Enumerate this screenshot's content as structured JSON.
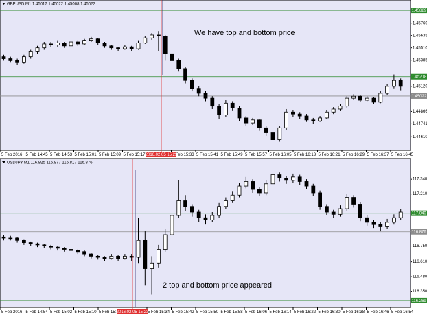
{
  "chart_data": [
    {
      "type": "candlestick",
      "header": "GBPUSD,M1  1.45017 1.45022 1.45008 1.45022",
      "annotation": "We have top and bottom price",
      "ylim": [
        1.4448,
        1.4598
      ],
      "yticks": [
        {
          "value": 1.4576,
          "label": "1.45760"
        },
        1.45635,
        {
          "value": 1.4551,
          "label": "1.45510"
        },
        1.45385,
        {
          "value": 1.4512,
          "label": "1.45120"
        },
        1.44866,
        1.44741,
        {
          "value": 1.4461,
          "label": "1.44610"
        }
      ],
      "levels": [
        {
          "value": 1.45889,
          "color": "#2e8b2e"
        },
        {
          "value": 1.45218,
          "color": "#2e8b2e"
        },
        {
          "value": 1.45022,
          "color": "#8c8c8c"
        }
      ],
      "cursor_label": "2016.02.05 15:29",
      "x_labels": [
        "5 Feb 2016",
        "5 Feb 14:45",
        "5 Feb 14:53",
        "5 Feb 15:01",
        "5 Feb 15:09",
        "5 Feb 15:17",
        "5 Feb 15:33",
        "5 Feb 15:41",
        "5 Feb 15:49",
        "5 Feb 15:57",
        "5 Feb 16:05",
        "5 Feb 16:13",
        "5 Feb 16:21",
        "5 Feb 16:29",
        "5 Feb 16:37",
        "5 Feb 16:45"
      ],
      "candles": [
        [
          1.4542,
          1.4544,
          1.4538,
          1.454
        ],
        [
          1.454,
          1.4542,
          1.4536,
          1.4538
        ],
        [
          1.4538,
          1.454,
          1.4534,
          1.4536
        ],
        [
          1.4536,
          1.4544,
          1.4535,
          1.4542
        ],
        [
          1.4542,
          1.4549,
          1.454,
          1.4547
        ],
        [
          1.4547,
          1.4553,
          1.4545,
          1.4551
        ],
        [
          1.4551,
          1.4557,
          1.4549,
          1.4555
        ],
        [
          1.4555,
          1.4557,
          1.4552,
          1.4554
        ],
        [
          1.4554,
          1.4558,
          1.4552,
          1.4556
        ],
        [
          1.4556,
          1.4557,
          1.4551,
          1.4553
        ],
        [
          1.4553,
          1.4559,
          1.4552,
          1.4557
        ],
        [
          1.4557,
          1.4558,
          1.4553,
          1.4555
        ],
        [
          1.4555,
          1.456,
          1.4554,
          1.4558
        ],
        [
          1.4558,
          1.4562,
          1.4557,
          1.456
        ],
        [
          1.456,
          1.4561,
          1.4554,
          1.4556
        ],
        [
          1.4556,
          1.4557,
          1.4551,
          1.4553
        ],
        [
          1.4553,
          1.4554,
          1.4549,
          1.4551
        ],
        [
          1.4551,
          1.4552,
          1.4548,
          1.455
        ],
        [
          1.455,
          1.4554,
          1.4549,
          1.4552
        ],
        [
          1.4552,
          1.4553,
          1.4548,
          1.455
        ],
        [
          1.455,
          1.4558,
          1.4549,
          1.4556
        ],
        [
          1.4556,
          1.4563,
          1.4555,
          1.4561
        ],
        [
          1.4561,
          1.4566,
          1.4559,
          1.4564
        ],
        [
          1.4564,
          1.4568,
          1.4548,
          1.4563
        ],
        [
          1.4563,
          1.4564,
          1.4538,
          1.4545
        ],
        [
          1.4545,
          1.4548,
          1.4534,
          1.4538
        ],
        [
          1.4538,
          1.454,
          1.4527,
          1.453
        ],
        [
          1.453,
          1.4532,
          1.4515,
          1.4518
        ],
        [
          1.4518,
          1.452,
          1.4507,
          1.451
        ],
        [
          1.451,
          1.4512,
          1.4502,
          1.4505
        ],
        [
          1.4505,
          1.4507,
          1.4497,
          1.45
        ],
        [
          1.45,
          1.4502,
          1.4489,
          1.4492
        ],
        [
          1.4492,
          1.4494,
          1.4479,
          1.4483
        ],
        [
          1.4483,
          1.4498,
          1.4481,
          1.4495
        ],
        [
          1.4495,
          1.4497,
          1.4487,
          1.449
        ],
        [
          1.449,
          1.4492,
          1.4477,
          1.448
        ],
        [
          1.448,
          1.4482,
          1.4472,
          1.4475
        ],
        [
          1.4475,
          1.448,
          1.4473,
          1.4478
        ],
        [
          1.4478,
          1.4479,
          1.4467,
          1.447
        ],
        [
          1.447,
          1.4472,
          1.4462,
          1.4465
        ],
        [
          1.4465,
          1.4466,
          1.4452,
          1.4458
        ],
        [
          1.4458,
          1.4472,
          1.4456,
          1.447
        ],
        [
          1.447,
          1.4489,
          1.4468,
          1.4486
        ],
        [
          1.4486,
          1.4488,
          1.4481,
          1.4484
        ],
        [
          1.4484,
          1.4486,
          1.4479,
          1.4482
        ],
        [
          1.4482,
          1.4484,
          1.4476,
          1.4478
        ],
        [
          1.4478,
          1.448,
          1.4474,
          1.4477
        ],
        [
          1.4477,
          1.4482,
          1.4476,
          1.448
        ],
        [
          1.448,
          1.4488,
          1.4479,
          1.4486
        ],
        [
          1.4486,
          1.4491,
          1.4484,
          1.4489
        ],
        [
          1.4489,
          1.4494,
          1.4487,
          1.4492
        ],
        [
          1.4492,
          1.4502,
          1.449,
          1.45
        ],
        [
          1.45,
          1.4504,
          1.4498,
          1.4502
        ],
        [
          1.4502,
          1.4503,
          1.4496,
          1.4498
        ],
        [
          1.4498,
          1.4502,
          1.4497,
          1.45
        ],
        [
          1.45,
          1.4501,
          1.4494,
          1.4496
        ],
        [
          1.4496,
          1.4507,
          1.4495,
          1.4505
        ],
        [
          1.4505,
          1.4514,
          1.4503,
          1.4512
        ],
        [
          1.4512,
          1.4524,
          1.451,
          1.4518
        ],
        [
          1.4518,
          1.452,
          1.4508,
          1.4512
        ]
      ]
    },
    {
      "type": "candlestick",
      "header": "USDJPY,M1  116.825 116.877 116.817 116.876",
      "annotation": "2 top and bottom price appeared",
      "ylim": [
        116.22,
        117.45
      ],
      "yticks": [
        {
          "value": 117.34,
          "label": "117.340"
        },
        {
          "value": 117.21,
          "label": "117.210"
        },
        {
          "value": 116.75,
          "label": "116.750"
        },
        {
          "value": 116.61,
          "label": "116.610"
        },
        {
          "value": 116.48,
          "label": "116.480"
        },
        {
          "value": 116.35,
          "label": "116.350"
        }
      ],
      "levels": [
        {
          "value": 117.04,
          "label": "117.040",
          "color": "#2e8b2e"
        },
        {
          "value": 116.876,
          "color": "#8c8c8c"
        },
        {
          "value": 116.269,
          "color": "#2e8b2e"
        }
      ],
      "cursor_label": "2016.02.05 15:23",
      "x_labels": [
        "5 Feb 2016",
        "5 Feb 14:54",
        "5 Feb 15:02",
        "5 Feb 15:10",
        "5 Feb 15:18",
        "5 Feb 15:34",
        "5 Feb 15:42",
        "5 Feb 15:50",
        "5 Feb 15:58",
        "5 Feb 16:06",
        "5 Feb 16:14",
        "5 Feb 16:22",
        "5 Feb 16:30",
        "5 Feb 16:38",
        "5 Feb 16:46",
        "5 Feb 16:54"
      ],
      "candles": [
        [
          116.83,
          116.85,
          116.8,
          116.82
        ],
        [
          116.82,
          116.84,
          116.8,
          116.82
        ],
        [
          116.82,
          116.83,
          116.78,
          116.8
        ],
        [
          116.8,
          116.81,
          116.76,
          116.78
        ],
        [
          116.78,
          116.79,
          116.75,
          116.77
        ],
        [
          116.77,
          116.78,
          116.74,
          116.76
        ],
        [
          116.76,
          116.77,
          116.73,
          116.75
        ],
        [
          116.75,
          116.76,
          116.72,
          116.74
        ],
        [
          116.74,
          116.75,
          116.71,
          116.73
        ],
        [
          116.73,
          116.74,
          116.7,
          116.72
        ],
        [
          116.72,
          116.73,
          116.69,
          116.71
        ],
        [
          116.71,
          116.72,
          116.68,
          116.7
        ],
        [
          116.7,
          116.71,
          116.66,
          116.68
        ],
        [
          116.68,
          116.69,
          116.64,
          116.66
        ],
        [
          116.66,
          116.67,
          116.63,
          116.65
        ],
        [
          116.65,
          116.66,
          116.62,
          116.64
        ],
        [
          116.64,
          116.68,
          116.63,
          116.66
        ],
        [
          116.66,
          116.67,
          116.62,
          116.64
        ],
        [
          116.64,
          116.68,
          116.63,
          116.66
        ],
        [
          116.66,
          116.68,
          116.62,
          116.65
        ],
        [
          116.65,
          117.0,
          116.6,
          116.8
        ],
        [
          116.8,
          116.88,
          116.4,
          116.55
        ],
        [
          116.55,
          116.66,
          116.32,
          116.6
        ],
        [
          116.6,
          116.76,
          116.56,
          116.72
        ],
        [
          116.72,
          116.9,
          116.7,
          116.85
        ],
        [
          116.85,
          117.08,
          116.83,
          117.02
        ],
        [
          117.02,
          117.33,
          117.0,
          117.15
        ],
        [
          117.15,
          117.2,
          117.06,
          117.1
        ],
        [
          117.1,
          117.12,
          117.01,
          117.05
        ],
        [
          117.05,
          117.07,
          116.96,
          117.0
        ],
        [
          117.0,
          117.03,
          116.94,
          116.98
        ],
        [
          116.98,
          117.05,
          116.96,
          117.02
        ],
        [
          117.02,
          117.13,
          117.0,
          117.1
        ],
        [
          117.1,
          117.18,
          117.08,
          117.15
        ],
        [
          117.15,
          117.23,
          117.13,
          117.2
        ],
        [
          117.2,
          117.31,
          117.18,
          117.28
        ],
        [
          117.28,
          117.36,
          117.26,
          117.32
        ],
        [
          117.32,
          117.34,
          117.22,
          117.25
        ],
        [
          117.25,
          117.27,
          117.19,
          117.22
        ],
        [
          117.22,
          117.33,
          117.2,
          117.3
        ],
        [
          117.3,
          117.42,
          117.28,
          117.38
        ],
        [
          117.38,
          117.4,
          117.32,
          117.35
        ],
        [
          117.35,
          117.37,
          117.3,
          117.33
        ],
        [
          117.33,
          117.39,
          117.31,
          117.36
        ],
        [
          117.36,
          117.38,
          117.29,
          117.32
        ],
        [
          117.32,
          117.34,
          117.25,
          117.28
        ],
        [
          117.28,
          117.3,
          117.19,
          117.22
        ],
        [
          117.22,
          117.24,
          117.07,
          117.1
        ],
        [
          117.1,
          117.12,
          117.02,
          117.05
        ],
        [
          117.05,
          117.07,
          117.0,
          117.03
        ],
        [
          117.03,
          117.11,
          117.01,
          117.08
        ],
        [
          117.08,
          117.21,
          117.06,
          117.18
        ],
        [
          117.18,
          117.2,
          117.09,
          117.12
        ],
        [
          117.12,
          117.14,
          116.97,
          117.0
        ],
        [
          117.0,
          117.02,
          116.93,
          116.96
        ],
        [
          116.96,
          116.98,
          116.91,
          116.94
        ],
        [
          116.94,
          116.96,
          116.88,
          116.92
        ],
        [
          116.92,
          116.99,
          116.9,
          116.96
        ],
        [
          116.96,
          117.03,
          116.94,
          117.0
        ],
        [
          117.0,
          117.08,
          116.98,
          117.05
        ]
      ]
    }
  ]
}
